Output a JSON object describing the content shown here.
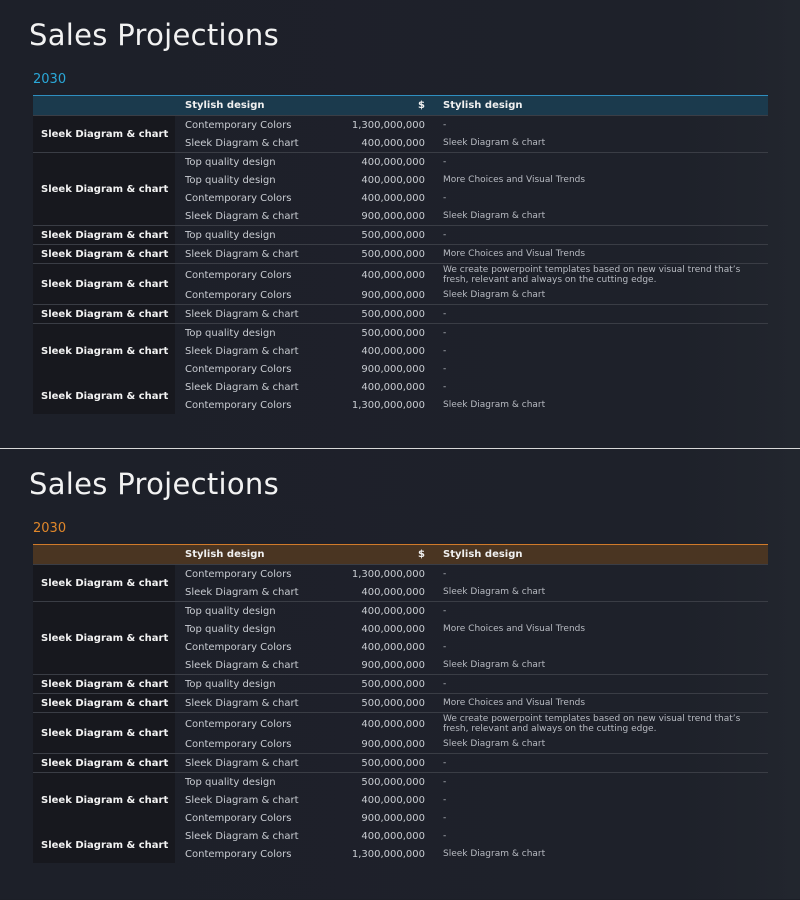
{
  "slides": [
    {
      "title": "Sales Projections",
      "year": "2030",
      "accent": "#2aa8d8",
      "header_bg": "#1b3a4d",
      "header_line": "#2f8fc0"
    },
    {
      "title": "Sales Projections",
      "year": "2030",
      "accent": "#e0872a",
      "header_bg": "#4a3522",
      "header_line": "#d07a2a"
    }
  ],
  "table": {
    "headers": [
      "",
      "Stylish design",
      "$",
      "Stylish design"
    ],
    "groups": [
      {
        "label": "Sleek Diagram & chart",
        "rows": [
          [
            "Contemporary Colors",
            "1,300,000,000",
            "-"
          ],
          [
            "Sleek Diagram & chart",
            "400,000,000",
            "Sleek Diagram & chart"
          ]
        ]
      },
      {
        "label": "Sleek Diagram & chart",
        "rows": [
          [
            "Top quality design",
            "400,000,000",
            "-"
          ],
          [
            "Top quality design",
            "400,000,000",
            "More Choices and Visual Trends"
          ],
          [
            "Contemporary Colors",
            "400,000,000",
            "-"
          ],
          [
            "Sleek Diagram & chart",
            "900,000,000",
            "Sleek Diagram & chart"
          ]
        ]
      },
      {
        "label": "Sleek Diagram & chart",
        "rows": [
          [
            "Top quality design",
            "500,000,000",
            "-"
          ]
        ]
      },
      {
        "label": "Sleek Diagram & chart",
        "rows": [
          [
            "Sleek Diagram & chart",
            "500,000,000",
            "More Choices and Visual Trends"
          ]
        ]
      },
      {
        "label": "Sleek Diagram & chart",
        "rows": [
          [
            "Contemporary Colors",
            "400,000,000",
            "We create powerpoint templates based on new visual trend that’s fresh, relevant and always on the cutting edge."
          ],
          [
            "Contemporary Colors",
            "900,000,000",
            "Sleek Diagram & chart"
          ]
        ]
      },
      {
        "label": "Sleek Diagram & chart",
        "rows": [
          [
            "Sleek Diagram & chart",
            "500,000,000",
            "-"
          ]
        ]
      },
      {
        "label": "Sleek Diagram & chart",
        "rows": [
          [
            "Top quality design",
            "500,000,000",
            "-"
          ],
          [
            "Sleek Diagram & chart",
            "400,000,000",
            "-"
          ],
          [
            "Contemporary Colors",
            "900,000,000",
            "-"
          ]
        ]
      },
      {
        "label": "Sleek Diagram & chart",
        "no_divider": true,
        "rows": [
          [
            "Sleek Diagram & chart",
            "400,000,000",
            "-"
          ],
          [
            "Contemporary Colors",
            "1,300,000,000",
            "Sleek Diagram & chart"
          ]
        ]
      }
    ]
  }
}
